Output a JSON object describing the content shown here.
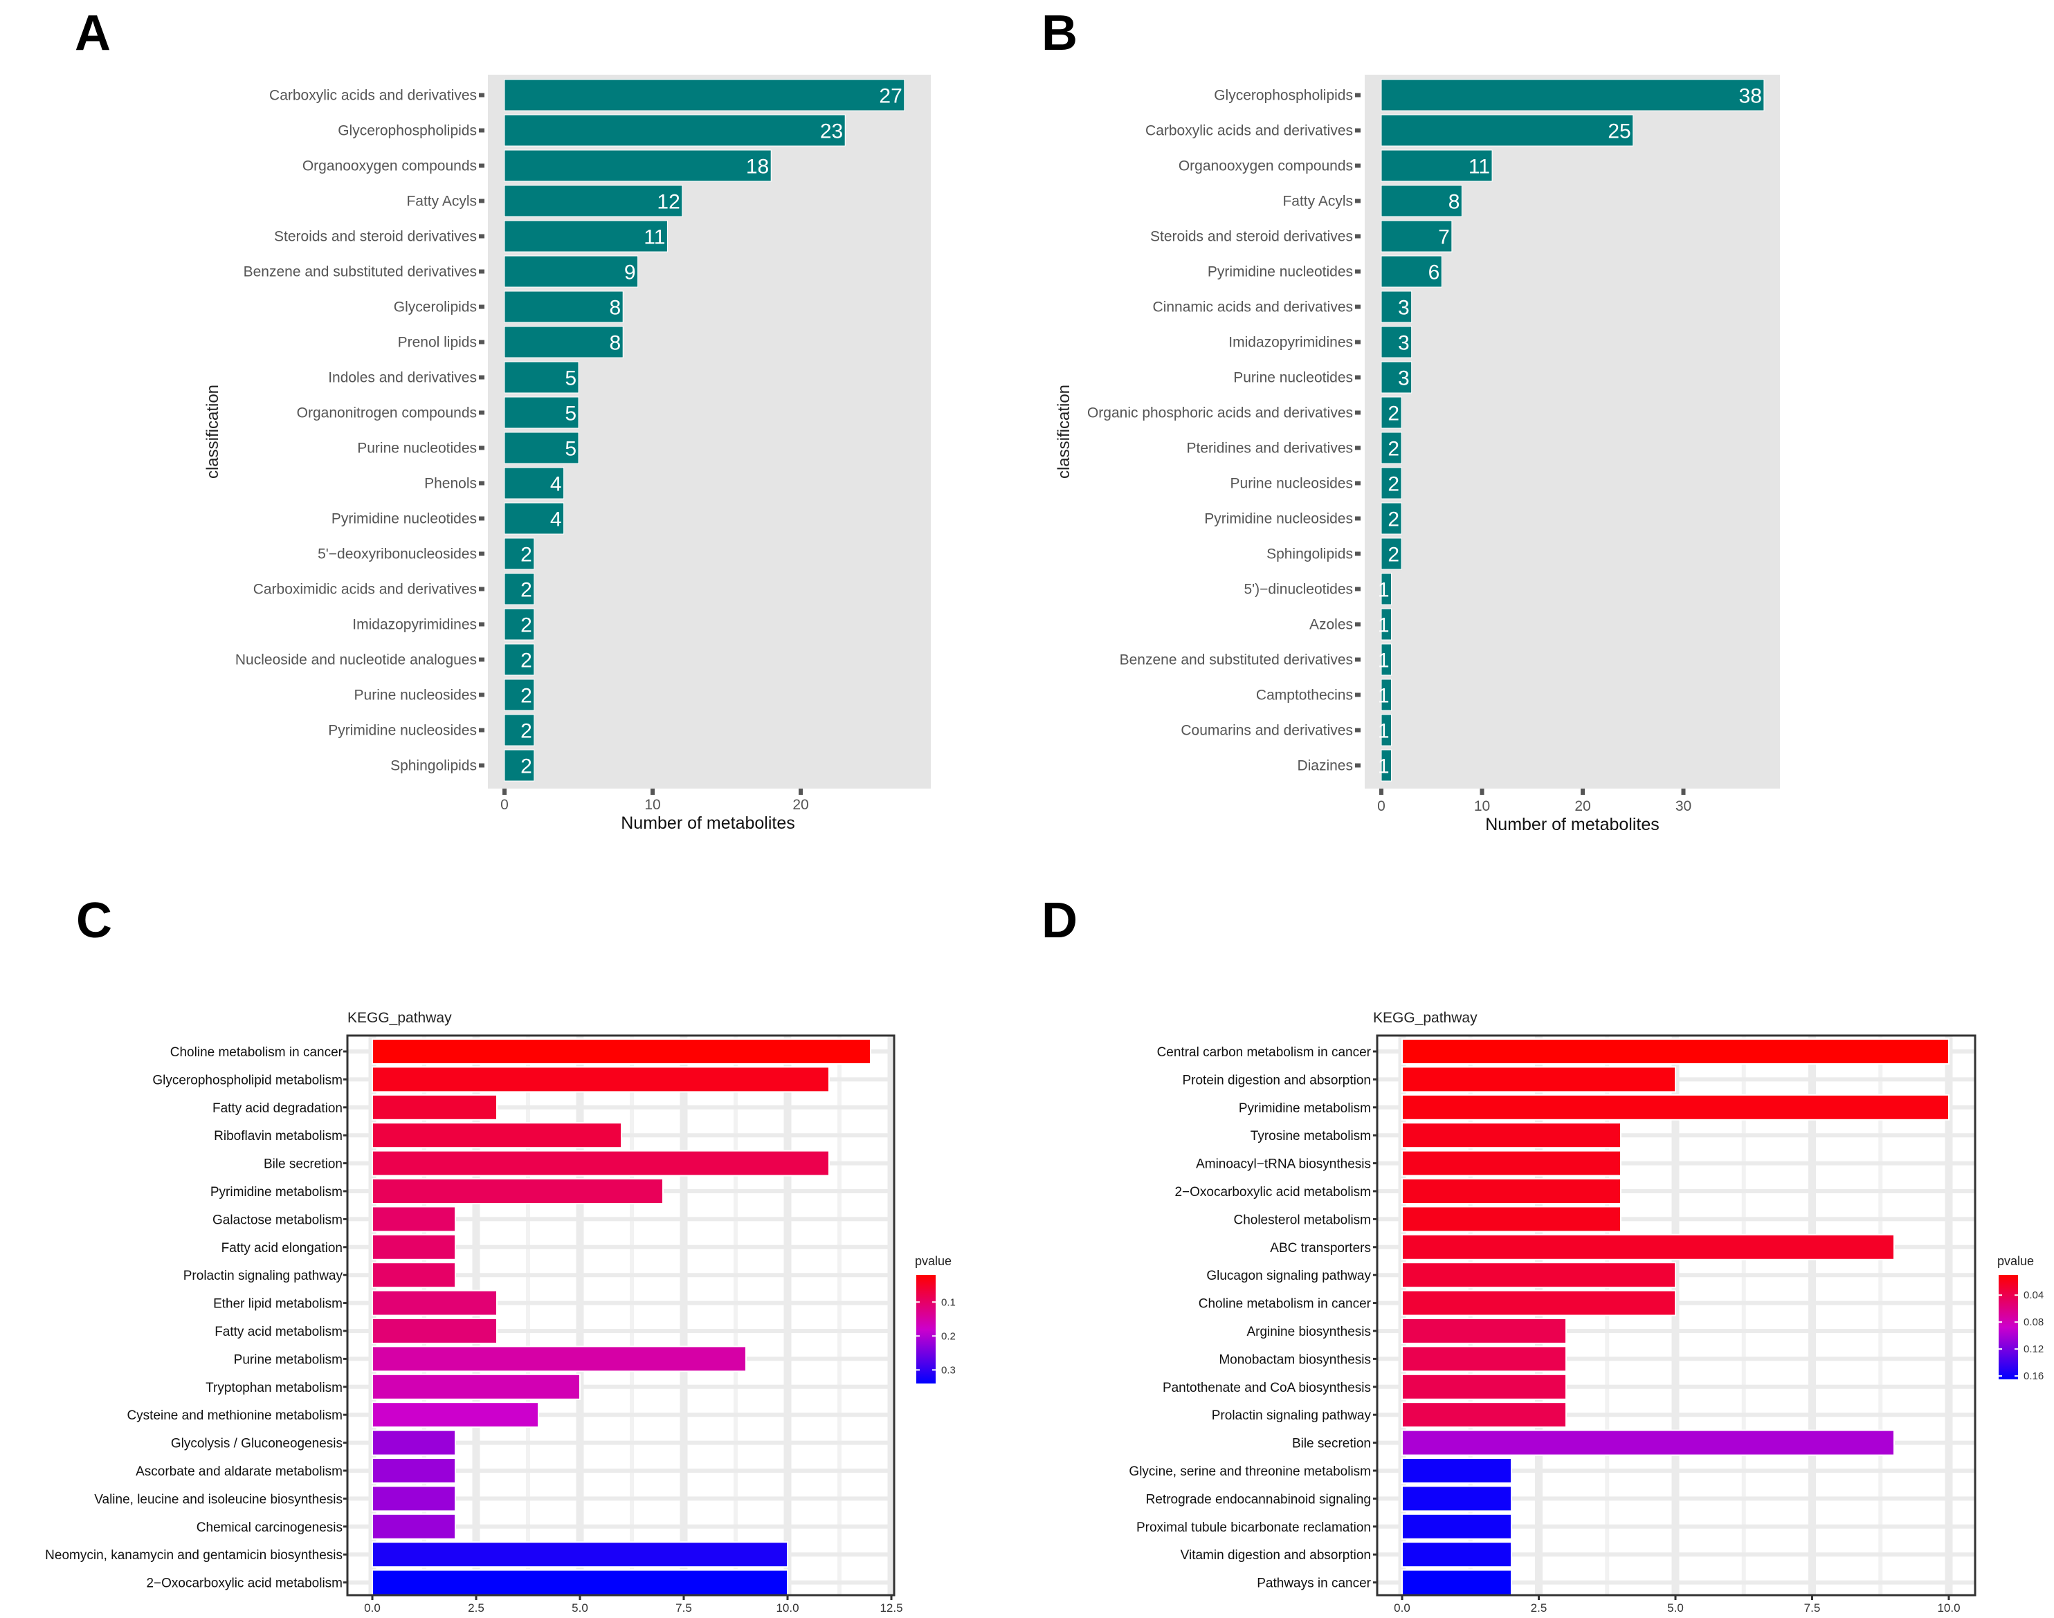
{
  "panels": {
    "A": {
      "letter": "A"
    },
    "B": {
      "letter": "B"
    },
    "C": {
      "letter": "C"
    },
    "D": {
      "letter": "D"
    }
  },
  "colors": {
    "teal_bar": "#007b7b",
    "panel_bg": "#e5e5e5",
    "pvalue_high": "#ff0000",
    "pvalue_mid": "#cc00cc",
    "pvalue_low": "#0000ff"
  },
  "chart_data": [
    {
      "id": "A",
      "type": "bar",
      "orientation": "horizontal",
      "title": "",
      "xlabel": "Number of metabolites",
      "ylabel": "classification",
      "xlim": [
        0,
        28
      ],
      "xticks": [
        "0",
        "10",
        "20"
      ],
      "grid": false,
      "categories": [
        "Carboxylic acids and derivatives",
        "Glycerophospholipids",
        "Organooxygen compounds",
        "Fatty Acyls",
        "Steroids and steroid derivatives",
        "Benzene and substituted derivatives",
        "Glycerolipids",
        "Prenol lipids",
        "Indoles and derivatives",
        "Organonitrogen compounds",
        "Purine nucleotides",
        "Phenols",
        "Pyrimidine nucleotides",
        "5'−deoxyribonucleosides",
        "Carboximidic acids and derivatives",
        "Imidazopyrimidines",
        "Nucleoside and nucleotide analogues",
        "Purine nucleosides",
        "Pyrimidine nucleosides",
        "Sphingolipids"
      ],
      "values": [
        27,
        23,
        18,
        12,
        11,
        9,
        8,
        8,
        5,
        5,
        5,
        4,
        4,
        2,
        2,
        2,
        2,
        2,
        2,
        2
      ],
      "data_labels": [
        "27",
        "23",
        "18",
        "12",
        "11",
        "9",
        "8",
        "8",
        "5",
        "5",
        "5",
        "4",
        "4",
        "2",
        "2",
        "2",
        "2",
        "2",
        "2",
        "2"
      ]
    },
    {
      "id": "B",
      "type": "bar",
      "orientation": "horizontal",
      "title": "",
      "xlabel": "Number of metabolites",
      "ylabel": "classification",
      "xlim": [
        0,
        39.5
      ],
      "xticks": [
        "0",
        "10",
        "20",
        "30"
      ],
      "grid": false,
      "categories": [
        "Glycerophospholipids",
        "Carboxylic acids and derivatives",
        "Organooxygen compounds",
        "Fatty Acyls",
        "Steroids and steroid derivatives",
        "Pyrimidine nucleotides",
        "Cinnamic acids and derivatives",
        "Imidazopyrimidines",
        "Purine nucleotides",
        "Organic phosphoric acids and derivatives",
        "Pteridines and derivatives",
        "Purine nucleosides",
        "Pyrimidine nucleosides",
        "Sphingolipids",
        "5')−dinucleotides",
        "Azoles",
        "Benzene and substituted derivatives",
        "Camptothecins",
        "Coumarins and derivatives",
        "Diazines"
      ],
      "values": [
        38,
        25,
        11,
        8,
        7,
        6,
        3,
        3,
        3,
        2,
        2,
        2,
        2,
        2,
        1,
        1,
        1,
        1,
        1,
        1
      ],
      "data_labels": [
        "38",
        "25",
        "11",
        "8",
        "7",
        "6",
        "3",
        "3",
        "3",
        "2",
        "2",
        "2",
        "2",
        "2",
        "1",
        "1",
        "1",
        "1",
        "1",
        "1"
      ]
    },
    {
      "id": "C",
      "type": "bar",
      "orientation": "horizontal",
      "title": "KEGG_pathway",
      "xlabel": "",
      "ylabel": "",
      "xlim": [
        0,
        12.5
      ],
      "xticks": [
        "0.0",
        "2.5",
        "5.0",
        "7.5",
        "10.0",
        "12.5"
      ],
      "grid": true,
      "legend": {
        "title": "pvalue",
        "placement": "right",
        "ticks": [
          "0.1",
          "0.2",
          "0.3"
        ],
        "range": [
          0.02,
          0.34
        ]
      },
      "categories": [
        "Choline metabolism in cancer",
        "Glycerophospholipid metabolism",
        "Fatty acid degradation",
        "Riboflavin metabolism",
        "Bile secretion",
        "Pyrimidine metabolism",
        "Galactose metabolism",
        "Fatty acid elongation",
        "Prolactin signaling pathway",
        "Ether lipid metabolism",
        "Fatty acid metabolism",
        "Purine metabolism",
        "Tryptophan metabolism",
        "Cysteine and methionine metabolism",
        "Glycolysis / Gluconeogenesis",
        "Ascorbate and aldarate metabolism",
        "Valine, leucine and isoleucine biosynthesis",
        "Chemical carcinogenesis",
        "Neomycin, kanamycin and gentamicin biosynthesis",
        "2−Oxocarboxylic acid metabolism"
      ],
      "values": [
        12,
        11,
        3,
        6,
        11,
        7,
        2,
        2,
        2,
        3,
        3,
        9,
        5,
        4,
        2,
        2,
        2,
        2,
        10,
        10
      ],
      "pvalues": [
        0.02,
        0.04,
        0.06,
        0.07,
        0.08,
        0.09,
        0.1,
        0.1,
        0.1,
        0.11,
        0.11,
        0.15,
        0.16,
        0.18,
        0.22,
        0.22,
        0.22,
        0.22,
        0.32,
        0.34
      ]
    },
    {
      "id": "D",
      "type": "bar",
      "orientation": "horizontal",
      "title": "KEGG_pathway",
      "xlabel": "",
      "ylabel": "",
      "xlim": [
        0,
        10.5
      ],
      "xticks": [
        "0.0",
        "2.5",
        "5.0",
        "7.5",
        "10.0"
      ],
      "grid": true,
      "legend": {
        "title": "pvalue",
        "placement": "right",
        "ticks": [
          "0.04",
          "0.08",
          "0.12",
          "0.16"
        ],
        "range": [
          0.01,
          0.165
        ]
      },
      "categories": [
        "Central carbon metabolism in cancer",
        "Protein digestion and absorption",
        "Pyrimidine metabolism",
        "Tyrosine metabolism",
        "Aminoacyl−tRNA biosynthesis",
        "2−Oxocarboxylic acid metabolism",
        "Cholesterol metabolism",
        "ABC transporters",
        "Glucagon signaling pathway",
        "Choline metabolism in cancer",
        "Arginine biosynthesis",
        "Monobactam biosynthesis",
        "Pantothenate and CoA biosynthesis",
        "Prolactin signaling pathway",
        "Bile secretion",
        "Glycine, serine and threonine metabolism",
        "Retrograde endocannabinoid signaling",
        "Proximal tubule bicarbonate reclamation",
        "Vitamin digestion and absorption",
        "Pathways in cancer"
      ],
      "values": [
        10,
        5,
        10,
        4,
        4,
        4,
        4,
        9,
        5,
        5,
        3,
        3,
        3,
        3,
        9,
        2,
        2,
        2,
        2,
        2
      ],
      "pvalues": [
        0.01,
        0.015,
        0.016,
        0.02,
        0.02,
        0.02,
        0.02,
        0.025,
        0.03,
        0.03,
        0.04,
        0.04,
        0.04,
        0.04,
        0.1,
        0.16,
        0.16,
        0.16,
        0.16,
        0.165
      ]
    }
  ]
}
